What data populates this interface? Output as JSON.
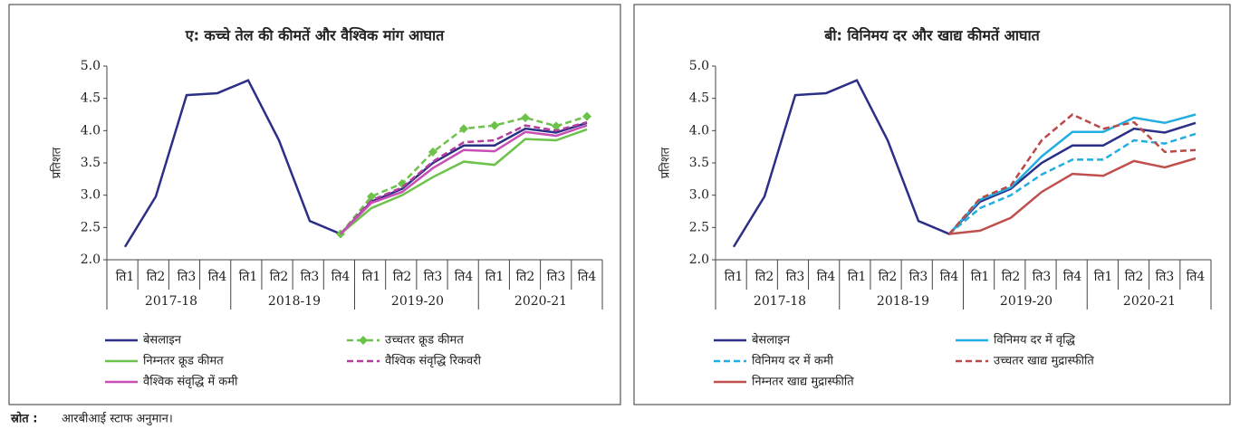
{
  "chart_data": [
    {
      "type": "line",
      "title": "ए: कच्चे तेल की कीमतें और वैश्विक मांग आघात",
      "ylabel": "प्रतिशत",
      "categories": [
        "ति1",
        "ति2",
        "ति3",
        "ति4",
        "ति1",
        "ति2",
        "ति3",
        "ति4",
        "ति1",
        "ति2",
        "ति3",
        "ति4",
        "ति1",
        "ति2",
        "ति3",
        "ति4"
      ],
      "groups": [
        "2017-18",
        "2018-19",
        "2019-20",
        "2020-21"
      ],
      "ylim": [
        2,
        5
      ],
      "yticks": [
        {
          "value": 2,
          "label": "2.0"
        },
        2.5,
        {
          "value": 3,
          "label": "3.0"
        },
        3.5,
        {
          "value": 4,
          "label": "4.0"
        },
        4.5,
        {
          "value": 5,
          "label": "5.0"
        }
      ],
      "series": [
        {
          "name": "बेसलाइन",
          "color": "#2b2f86",
          "values": [
            2.2,
            2.98,
            4.55,
            4.58,
            4.78,
            3.85,
            2.6,
            2.4,
            2.9,
            3.1,
            3.5,
            3.77,
            3.77,
            4.03,
            3.97,
            4.12
          ]
        },
        {
          "name": "उच्चतर क्रूड कीमत",
          "color": "#6cc24a",
          "dash": true,
          "marker": "diamond",
          "values": [
            null,
            null,
            null,
            null,
            null,
            null,
            null,
            2.4,
            2.98,
            3.18,
            3.67,
            4.03,
            4.08,
            4.2,
            4.07,
            4.22
          ]
        },
        {
          "name": "निम्नतर क्रूड कीमत",
          "color": "#6cc24a",
          "values": [
            null,
            null,
            null,
            null,
            null,
            null,
            null,
            2.4,
            2.8,
            3.0,
            3.28,
            3.52,
            3.47,
            3.87,
            3.85,
            4.02
          ]
        },
        {
          "name": "वैश्विक संवृद्धि रिकवरी",
          "color": "#b43c9e",
          "dash": true,
          "values": [
            null,
            null,
            null,
            null,
            null,
            null,
            null,
            2.4,
            2.92,
            3.12,
            3.52,
            3.82,
            3.85,
            4.08,
            4.0,
            4.13
          ]
        },
        {
          "name": "वैश्विक संवृद्धि में कमी",
          "color": "#c84fb4",
          "values": [
            null,
            null,
            null,
            null,
            null,
            null,
            null,
            2.4,
            2.88,
            3.05,
            3.42,
            3.7,
            3.68,
            3.98,
            3.92,
            4.08
          ]
        }
      ]
    },
    {
      "type": "line",
      "title": "बी: विनिमय दर और खाद्य कीमतें आघात",
      "ylabel": "प्रतिशत",
      "categories": [
        "ति1",
        "ति2",
        "ति3",
        "ति4",
        "ति1",
        "ति2",
        "ति3",
        "ति4",
        "ति1",
        "ति2",
        "ति3",
        "ति4",
        "ति1",
        "ति2",
        "ति3",
        "ति4"
      ],
      "groups": [
        "2017-18",
        "2018-19",
        "2019-20",
        "2020-21"
      ],
      "ylim": [
        2,
        5
      ],
      "yticks": [
        {
          "value": 2,
          "label": "2.0"
        },
        2.5,
        {
          "value": 3,
          "label": "3.0"
        },
        3.5,
        {
          "value": 4,
          "label": "4.0"
        },
        4.5,
        {
          "value": 5,
          "label": "5.0"
        }
      ],
      "series": [
        {
          "name": "बेसलाइन",
          "color": "#2b2f86",
          "values": [
            2.2,
            2.98,
            4.55,
            4.58,
            4.78,
            3.85,
            2.6,
            2.4,
            2.9,
            3.1,
            3.5,
            3.77,
            3.77,
            4.03,
            3.97,
            4.12
          ]
        },
        {
          "name": "विनिमय दर में वृद्धि",
          "color": "#22aee0",
          "values": [
            null,
            null,
            null,
            null,
            null,
            null,
            null,
            2.4,
            2.93,
            3.12,
            3.6,
            3.98,
            3.98,
            4.2,
            4.12,
            4.25
          ]
        },
        {
          "name": "विनिमय दर में कमी",
          "color": "#22aee0",
          "dash": true,
          "values": [
            null,
            null,
            null,
            null,
            null,
            null,
            null,
            2.4,
            2.8,
            3.0,
            3.32,
            3.55,
            3.55,
            3.85,
            3.8,
            3.95
          ]
        },
        {
          "name": "उच्चतर खाद्य मुद्रास्फीति",
          "color": "#b94a48",
          "dash": true,
          "values": [
            null,
            null,
            null,
            null,
            null,
            null,
            null,
            2.4,
            2.95,
            3.15,
            3.85,
            4.25,
            4.03,
            4.13,
            3.67,
            3.7
          ]
        },
        {
          "name": "निम्नतर खाद्य मुद्रास्फीति",
          "color": "#c0504d",
          "values": [
            null,
            null,
            null,
            null,
            null,
            null,
            null,
            2.4,
            2.45,
            2.65,
            3.05,
            3.33,
            3.3,
            3.53,
            3.43,
            3.57
          ]
        }
      ]
    }
  ],
  "source": {
    "label": "स्रोत :",
    "text": "आरबीआई स्टाफ अनुमान।"
  }
}
